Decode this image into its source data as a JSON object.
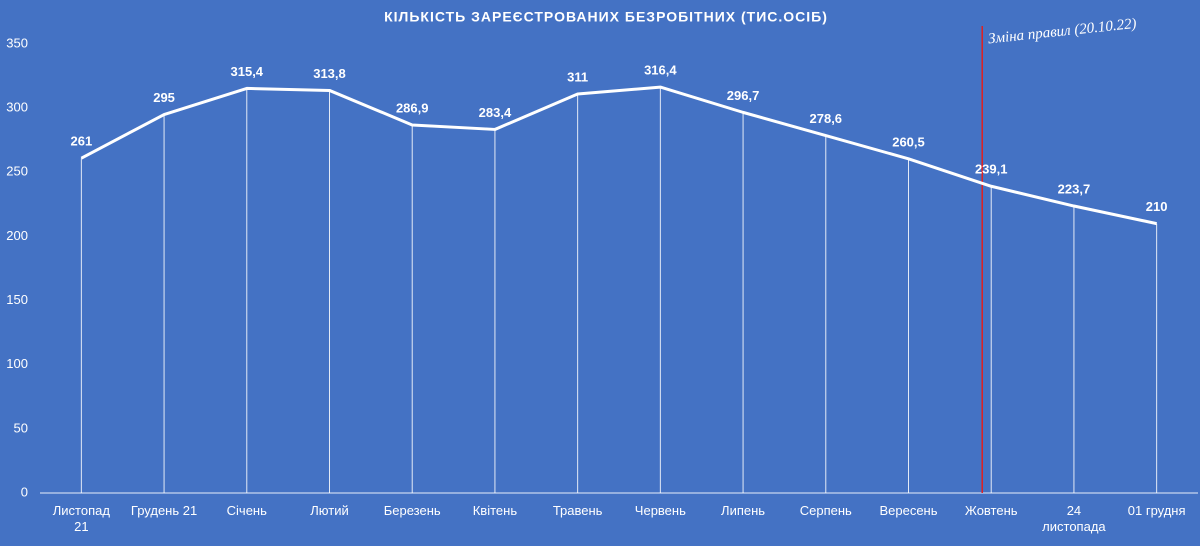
{
  "chart_data": {
    "type": "line",
    "title": "КІЛЬКІСТЬ ЗАРЕЄСТРОВАНИХ БЕЗРОБІТНИХ (ТИС.ОСІБ)",
    "categories": [
      "Листопад 21",
      "Грудень 21",
      "Січень",
      "Лютий",
      "Березень",
      "Квітень",
      "Травень",
      "Червень",
      "Липень",
      "Серпень",
      "Вересень",
      "Жовтень",
      "24 листопада",
      "01 грудня"
    ],
    "values": [
      261,
      295,
      315.4,
      313.8,
      286.9,
      283.4,
      311,
      316.4,
      296.7,
      278.6,
      260.5,
      239.1,
      223.7,
      210
    ],
    "value_labels": [
      "261",
      "295",
      "315,4",
      "313,8",
      "286,9",
      "283,4",
      "311",
      "316,4",
      "296,7",
      "278,6",
      "260,5",
      "239,1",
      "223,7",
      "210"
    ],
    "color": "#ffffff",
    "ylim": [
      0,
      350
    ],
    "yticks": [
      0,
      50,
      100,
      150,
      200,
      250,
      300,
      350
    ],
    "annotation": "Зміна правил (20.10.22)"
  }
}
